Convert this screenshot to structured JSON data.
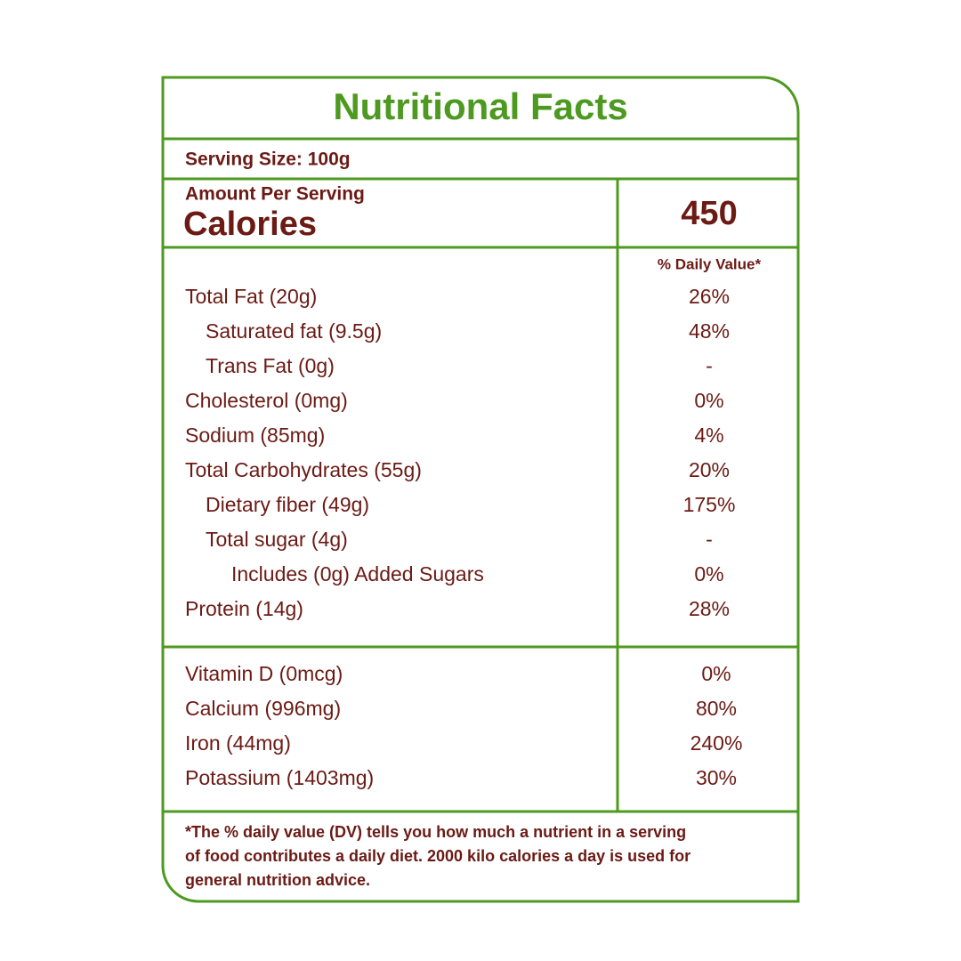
{
  "header": {
    "title": "Nutritional Facts",
    "serving_size": "Serving Size: 100g"
  },
  "calories": {
    "amount_per_serving": "Amount Per Serving",
    "label": "Calories",
    "value": "450"
  },
  "daily_value_header": "% Daily Value*",
  "nutrients": [
    {
      "label": "Total Fat (20g)",
      "dv": "26%"
    },
    {
      "label": "Saturated fat (9.5g)",
      "dv": "48%"
    },
    {
      "label": "Trans Fat (0g)",
      "dv": "-"
    },
    {
      "label": "Cholesterol (0mg)",
      "dv": "0%"
    },
    {
      "label": "Sodium (85mg)",
      "dv": "4%"
    },
    {
      "label": "Total Carbohydrates  (55g)",
      "dv": "20%"
    },
    {
      "label": "Dietary fiber (49g)",
      "dv": "175%"
    },
    {
      "label": "Total sugar (4g)",
      "dv": "-"
    },
    {
      "label": "Includes (0g) Added Sugars",
      "dv": "0%"
    },
    {
      "label": "Protein (14g)",
      "dv": "28%"
    }
  ],
  "vitamins": [
    {
      "label": "Vitamin D (0mcg)",
      "dv": "0%"
    },
    {
      "label": "Calcium (996mg)",
      "dv": "80%"
    },
    {
      "label": "Iron (44mg)",
      "dv": "240%"
    },
    {
      "label": "Potassium (1403mg)",
      "dv": "30%"
    }
  ],
  "footnote": [
    "*The % daily value (DV) tells you how much a nutrient in a serving",
    "of food contributes a daily diet. 2000 kilo calories a day is used for",
    "general nutrition advice."
  ]
}
